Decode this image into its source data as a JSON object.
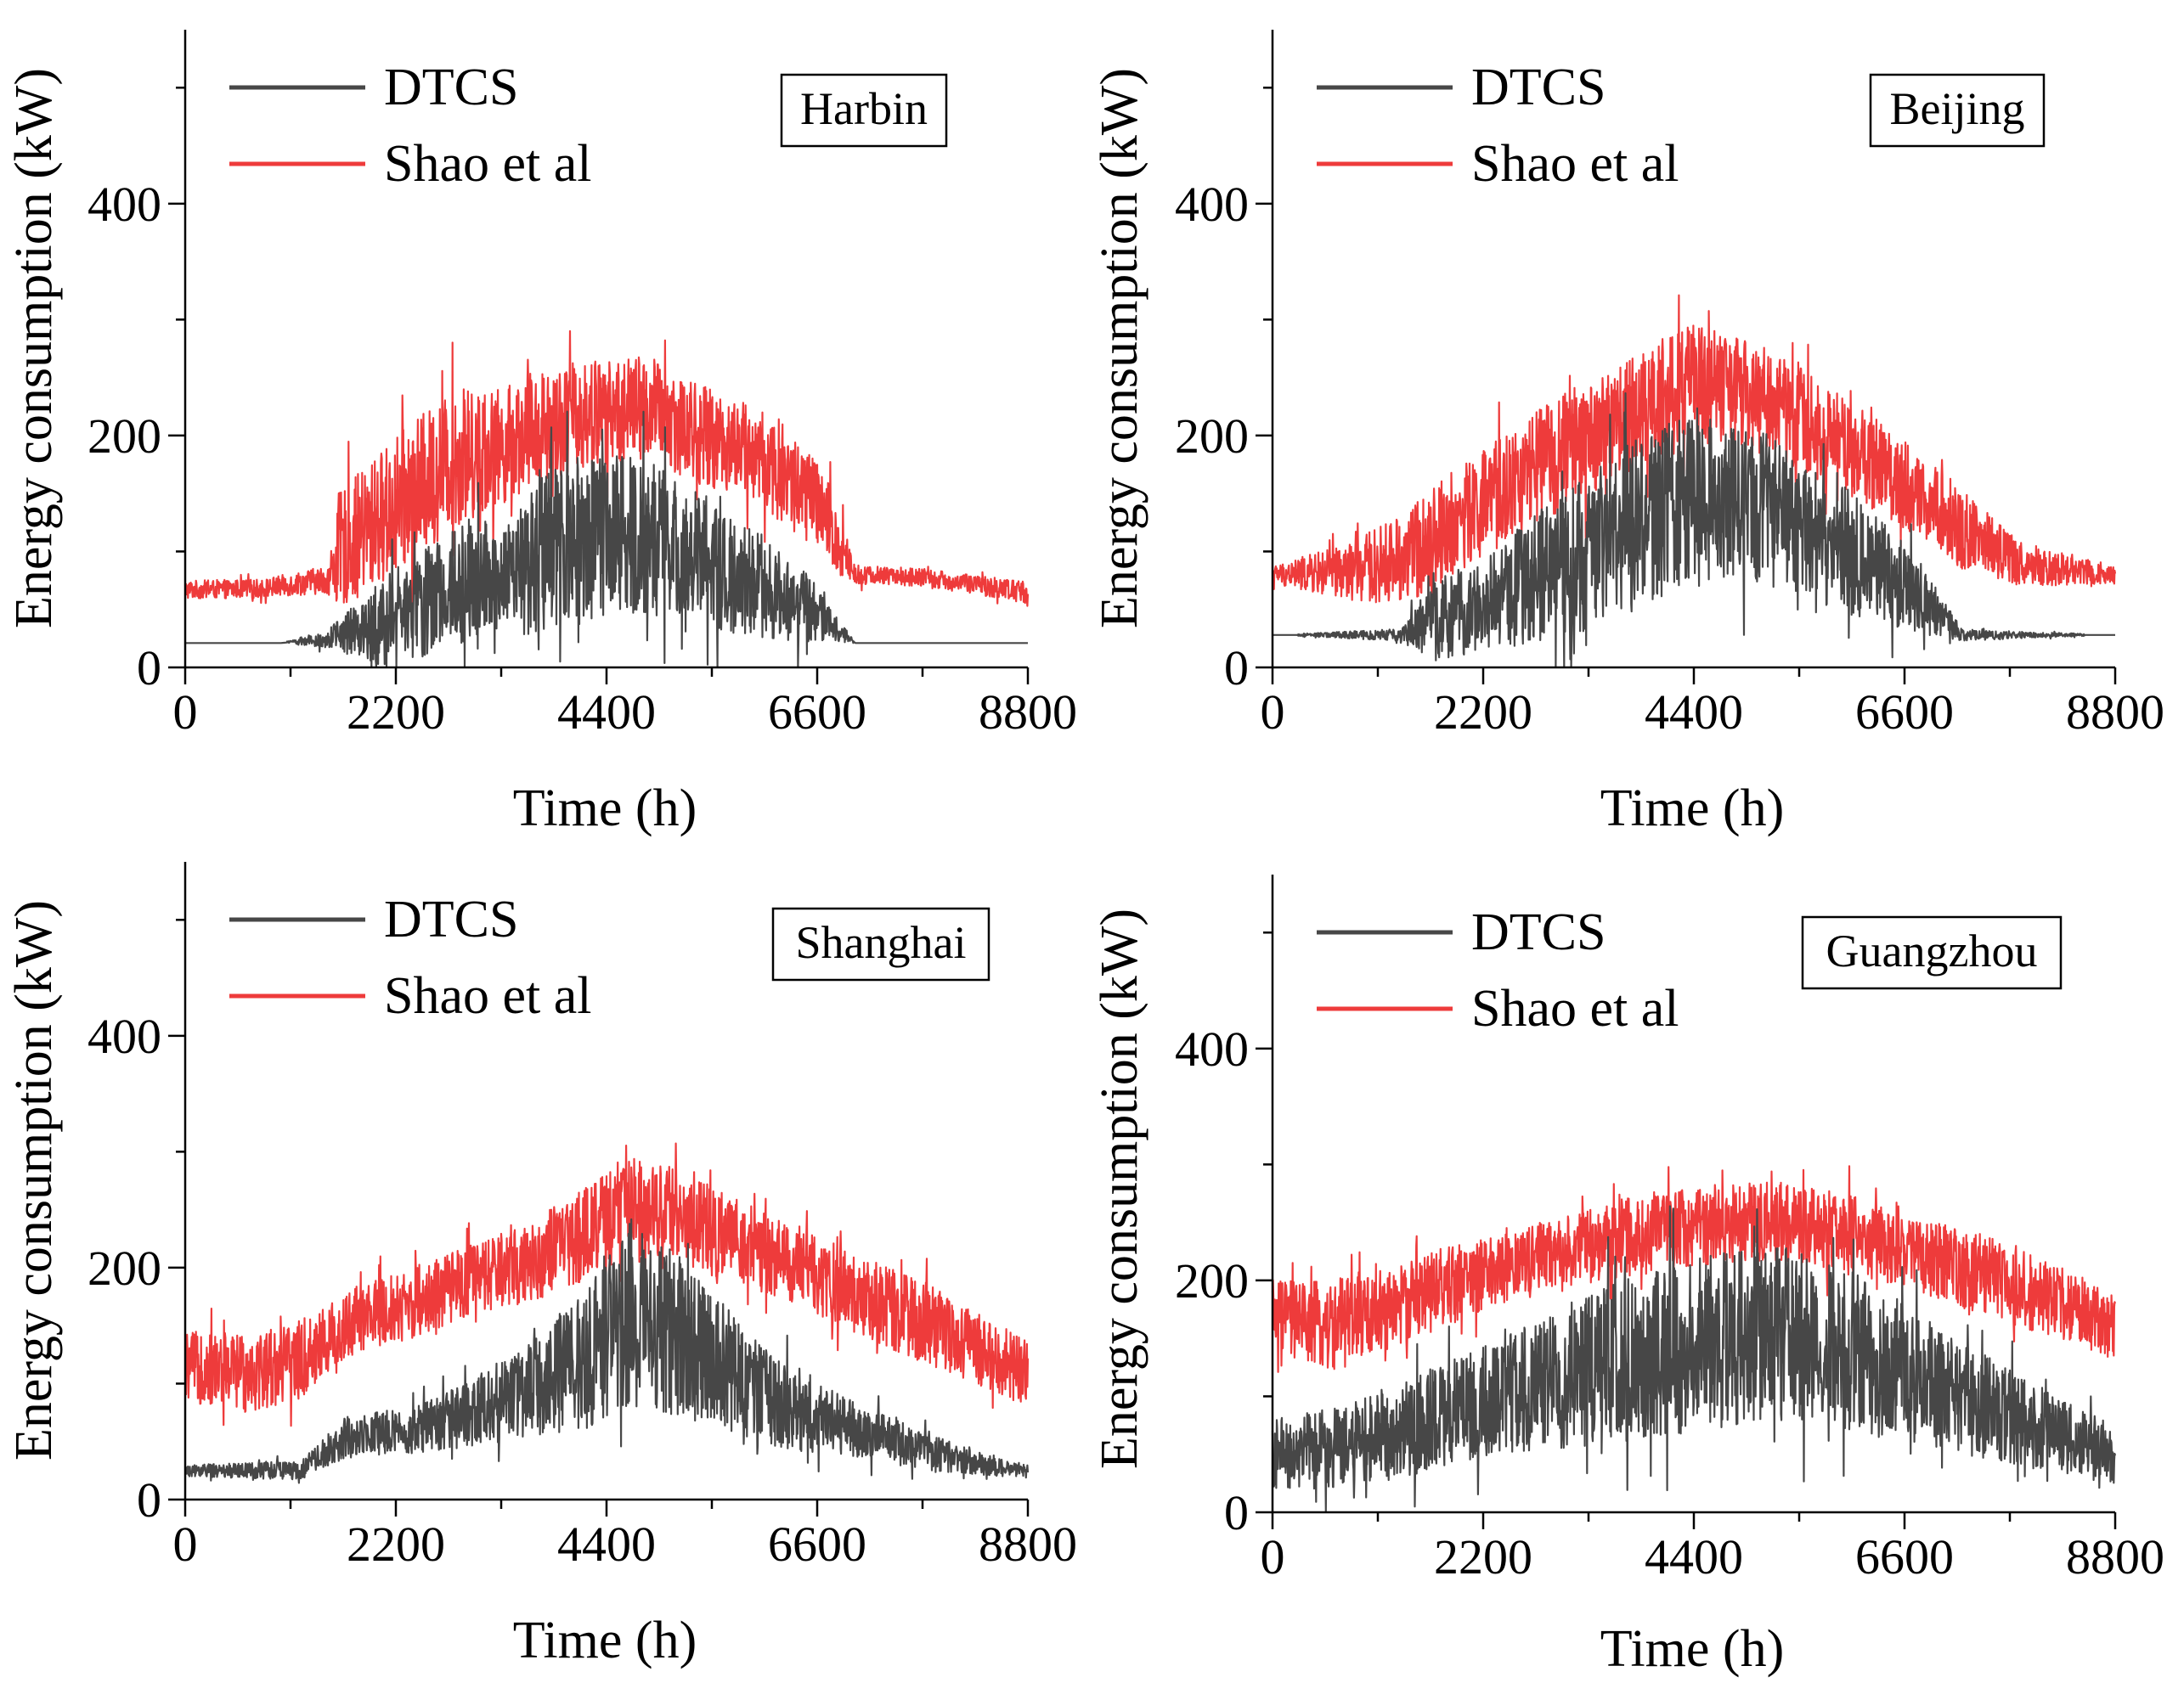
{
  "figure": {
    "series_colors": {
      "DTCS": "#474747",
      "Shao et al": "#ee3b3b"
    }
  },
  "chart_data": [
    {
      "type": "line",
      "city": "Harbin",
      "xlabel": "Time (h)",
      "ylabel": "Energy consumption (kW)",
      "xlim": [
        0,
        8800
      ],
      "ylim": [
        0,
        550
      ],
      "xticks": [
        "0",
        "2200",
        "4400",
        "6600",
        "8800"
      ],
      "yticks": [
        "0",
        "200",
        "400"
      ],
      "legend": [
        "DTCS",
        "Shao et al"
      ],
      "series": [
        {
          "name": "Shao et al",
          "color": "#ee3b3b",
          "x": [
            0,
            800,
            1500,
            1600,
            2200,
            2800,
            3300,
            3600,
            4000,
            4400,
            4800,
            5000,
            5400,
            5800,
            6200,
            6600,
            6800,
            7000,
            7600,
            8200,
            8800
          ],
          "mean": [
            67,
            68,
            76,
            100,
            140,
            180,
            190,
            205,
            215,
            220,
            225,
            218,
            200,
            190,
            170,
            140,
            110,
            80,
            78,
            72,
            65
          ],
          "amp": [
            8,
            8,
            12,
            50,
            60,
            60,
            50,
            50,
            48,
            45,
            45,
            45,
            45,
            40,
            45,
            40,
            35,
            8,
            8,
            8,
            10
          ]
        },
        {
          "name": "DTCS",
          "color": "#474747",
          "x": [
            0,
            1000,
            1500,
            2100,
            2600,
            3000,
            3300,
            3700,
            4200,
            4600,
            4900,
            5200,
            5600,
            6000,
            6500,
            7000,
            8800
          ],
          "mean": [
            21,
            21,
            25,
            40,
            60,
            80,
            70,
            95,
            110,
            115,
            110,
            100,
            85,
            70,
            50,
            21,
            21
          ],
          "amp": [
            0,
            0,
            8,
            40,
            50,
            55,
            45,
            70,
            75,
            70,
            65,
            60,
            55,
            45,
            30,
            0,
            0
          ]
        }
      ]
    },
    {
      "type": "line",
      "city": "Beijing",
      "xlabel": "Time (h)",
      "ylabel": "Energy consumption (kW)",
      "xlim": [
        0,
        8800
      ],
      "ylim": [
        0,
        550
      ],
      "xticks": [
        "0",
        "2200",
        "4400",
        "6600",
        "8800"
      ],
      "yticks": [
        "0",
        "200",
        "400"
      ],
      "legend": [
        "DTCS",
        "Shao et al"
      ],
      "series": [
        {
          "name": "Shao et al",
          "color": "#ee3b3b",
          "x": [
            0,
            800,
            1400,
            1800,
            2400,
            3000,
            3600,
            4000,
            4400,
            4800,
            5200,
            5600,
            6000,
            6400,
            6800,
            7200,
            7800,
            8800
          ],
          "mean": [
            80,
            82,
            95,
            120,
            150,
            185,
            210,
            230,
            245,
            240,
            230,
            210,
            190,
            170,
            145,
            120,
            90,
            80
          ],
          "amp": [
            8,
            25,
            40,
            45,
            50,
            50,
            50,
            50,
            55,
            45,
            45,
            45,
            40,
            40,
            35,
            35,
            20,
            8
          ]
        },
        {
          "name": "DTCS",
          "color": "#474747",
          "x": [
            0,
            1300,
            1700,
            2200,
            2700,
            3200,
            3700,
            4200,
            4700,
            5200,
            5700,
            6200,
            6700,
            7200,
            8800
          ],
          "mean": [
            28,
            28,
            40,
            55,
            75,
            95,
            120,
            140,
            145,
            135,
            115,
            90,
            65,
            28,
            28
          ],
          "amp": [
            0,
            5,
            35,
            40,
            55,
            65,
            75,
            75,
            70,
            65,
            60,
            50,
            35,
            5,
            0
          ]
        }
      ]
    },
    {
      "type": "line",
      "city": "Shanghai",
      "xlabel": "Time (h)",
      "ylabel": "Energy consumption (kW)",
      "xlim": [
        0,
        8800
      ],
      "ylim": [
        0,
        550
      ],
      "xticks": [
        "0",
        "2200",
        "4400",
        "6600",
        "8800"
      ],
      "yticks": [
        "0",
        "200",
        "400"
      ],
      "legend": [
        "DTCS",
        "Shao et al"
      ],
      "series": [
        {
          "name": "Shao et al",
          "color": "#ee3b3b",
          "x": [
            0,
            600,
            1200,
            1800,
            2400,
            3000,
            3600,
            4200,
            4600,
            5000,
            5400,
            6000,
            6600,
            7200,
            7800,
            8400,
            8800
          ],
          "mean": [
            115,
            110,
            120,
            155,
            170,
            190,
            205,
            230,
            255,
            250,
            235,
            215,
            195,
            170,
            150,
            125,
            110
          ],
          "amp": [
            30,
            35,
            35,
            30,
            30,
            30,
            35,
            40,
            45,
            40,
            40,
            35,
            35,
            35,
            35,
            30,
            30
          ]
        },
        {
          "name": "DTCS",
          "color": "#474747",
          "x": [
            0,
            1200,
            1700,
            2400,
            3000,
            3600,
            4200,
            4600,
            5000,
            5500,
            6000,
            6600,
            7200,
            7800,
            8400,
            8800
          ],
          "mean": [
            25,
            25,
            55,
            60,
            75,
            95,
            120,
            160,
            150,
            120,
            90,
            70,
            55,
            40,
            30,
            25
          ],
          "amp": [
            5,
            8,
            18,
            20,
            30,
            40,
            60,
            80,
            75,
            60,
            45,
            30,
            22,
            15,
            10,
            5
          ]
        }
      ]
    },
    {
      "type": "line",
      "city": "Guangzhou",
      "xlabel": "Time (h)",
      "ylabel": "Energy consumption (kW)",
      "xlim": [
        0,
        8800
      ],
      "ylim": [
        0,
        550
      ],
      "xticks": [
        "0",
        "2200",
        "4400",
        "6600",
        "8800"
      ],
      "yticks": [
        "0",
        "200",
        "400"
      ],
      "legend": [
        "DTCS",
        "Shao et al"
      ],
      "series": [
        {
          "name": "Shao et al",
          "color": "#ee3b3b",
          "x": [
            0,
            600,
            1200,
            1800,
            2400,
            3000,
            3600,
            4200,
            4800,
            5400,
            6000,
            6600,
            7200,
            7800,
            8400,
            8800
          ],
          "mean": [
            170,
            160,
            175,
            195,
            210,
            225,
            235,
            245,
            250,
            250,
            240,
            225,
            210,
            195,
            175,
            160
          ],
          "amp": [
            30,
            40,
            35,
            35,
            30,
            30,
            35,
            35,
            35,
            35,
            35,
            30,
            35,
            35,
            30,
            30
          ]
        },
        {
          "name": "DTCS",
          "color": "#474747",
          "x": [
            0,
            600,
            1200,
            1800,
            2400,
            3000,
            3600,
            4200,
            4800,
            5400,
            6000,
            6600,
            7200,
            7800,
            8400,
            8800
          ],
          "mean": [
            50,
            55,
            65,
            85,
            100,
            115,
            130,
            140,
            150,
            155,
            140,
            120,
            100,
            80,
            60,
            50
          ],
          "amp": [
            30,
            35,
            40,
            45,
            50,
            60,
            70,
            75,
            75,
            75,
            70,
            60,
            50,
            40,
            30,
            25
          ]
        }
      ]
    }
  ]
}
